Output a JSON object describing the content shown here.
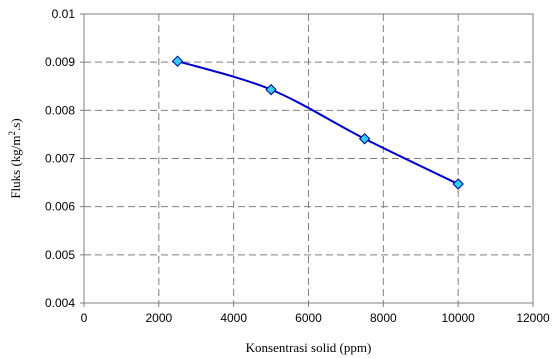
{
  "chart_data": {
    "type": "line",
    "title": "",
    "xlabel": "Konsentrasi solid (ppm)",
    "ylabel": "Fluks (kg/m",
    "ylabel_sup": "2",
    "ylabel_suffix": ".s)",
    "xlim": [
      0,
      12000
    ],
    "ylim": [
      0.004,
      0.01
    ],
    "x_ticks": [
      0,
      2000,
      4000,
      6000,
      8000,
      10000,
      12000
    ],
    "x_tick_labels": [
      "0",
      "2000",
      "4000",
      "6000",
      "8000",
      "10000",
      "12000"
    ],
    "y_ticks": [
      0.004,
      0.005,
      0.006,
      0.007,
      0.008,
      0.009,
      0.01
    ],
    "y_tick_labels": [
      "0.004",
      "0.005",
      "0.006",
      "0.007",
      "0.008",
      "0.009",
      "0.01"
    ],
    "grid": true,
    "grid_style": "dashed",
    "series": [
      {
        "x": [
          2500,
          5000,
          7500,
          10000
        ],
        "y": [
          0.00902,
          0.00843,
          0.00741,
          0.00647
        ],
        "smooth": true,
        "line_color": "#0000CC",
        "marker": "diamond",
        "marker_fill": "#33CCFF",
        "marker_edge": "#000080"
      }
    ]
  }
}
